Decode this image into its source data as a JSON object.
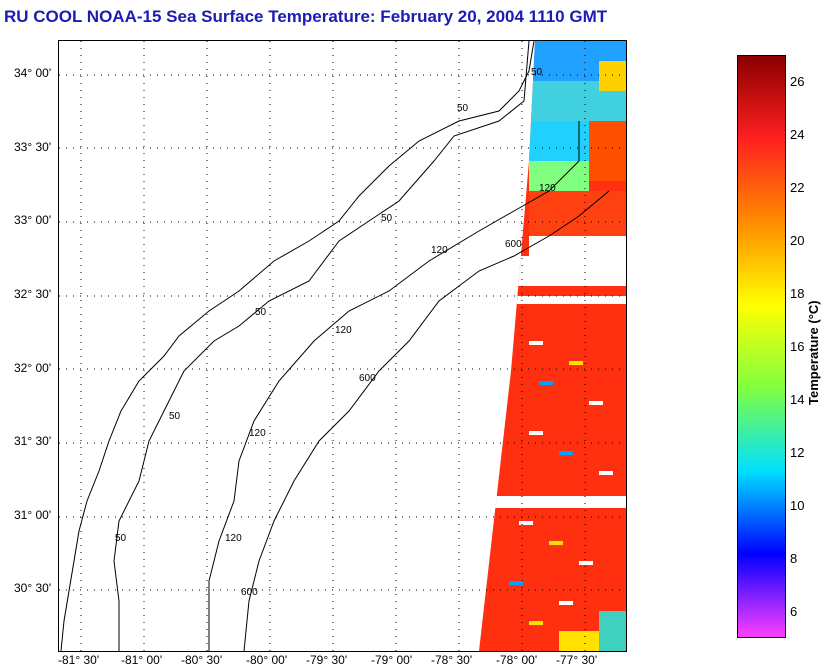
{
  "header": {
    "title": "RU COOL  NOAA-15  Sea Surface Temperature:  February 20, 2004 1110 GMT"
  },
  "map": {
    "lat_labels": [
      "34° 00'",
      "33° 30'",
      "33° 00'",
      "32° 30'",
      "32° 00'",
      "31° 30'",
      "31° 00'",
      "30° 30'"
    ],
    "lon_labels": [
      "-81° 30'",
      "-81° 00'",
      "-80° 30'",
      "-80° 00'",
      "-79° 30'",
      "-79° 00'",
      "-78° 30'",
      "-78° 00'",
      "-77° 30'"
    ],
    "isobath_labels": [
      "50",
      "50",
      "50",
      "50",
      "50",
      "50",
      "120",
      "120",
      "120",
      "120",
      "120",
      "600",
      "600",
      "600"
    ]
  },
  "colorbar": {
    "title": "Temperature (°C)",
    "ticks": [
      "26",
      "24",
      "22",
      "20",
      "18",
      "16",
      "14",
      "12",
      "10",
      "8",
      "6"
    ],
    "colors": {
      "dark_red": "#8b0000",
      "red": "#ff2020",
      "orange": "#ff8c00",
      "yellow": "#ffff00",
      "green": "#80ff40",
      "cyan": "#00e0ff",
      "blue": "#0000ff",
      "magenta": "#ff40ff"
    }
  }
}
